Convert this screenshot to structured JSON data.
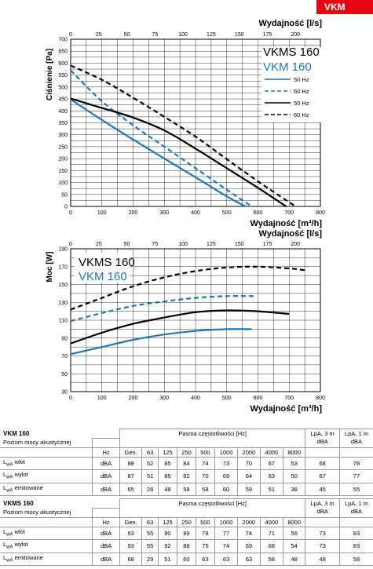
{
  "badge": "VKM",
  "charts": {
    "pressure": {
      "ylabel": "Ciśnienie [Pa]",
      "xlabel_top": "Wydajność [l/s]",
      "xlabel_bottom": "Wydajność [m³/h]",
      "model_vkms": "VKMS 160",
      "model_vkm": "VKM 160",
      "legend": [
        "50 Hz",
        "60 Hz",
        "50 Hz",
        "60 Hz"
      ]
    },
    "power": {
      "ylabel": "Moc [W]",
      "xlabel_top": "Wydajność [l/s]",
      "xlabel_bottom": "Wydajność [m³/h]",
      "model_vkms": "VKMS 160",
      "model_vkm": "VKM 160"
    }
  },
  "chart_data": [
    {
      "type": "line",
      "xlabel": "Wydajność [m³/h]",
      "x2label": "Wydajność [l/s]",
      "ylabel": "Ciśnienie [Pa]",
      "xlim": [
        0,
        800
      ],
      "x2lim": [
        0,
        222.2
      ],
      "ylim": [
        0,
        700
      ],
      "xticks": [
        0,
        100,
        200,
        300,
        400,
        500,
        600,
        700,
        800
      ],
      "x2ticks": [
        0,
        25,
        50,
        75,
        100,
        125,
        150,
        175,
        200
      ],
      "yticks": [
        0,
        50,
        100,
        150,
        200,
        250,
        300,
        350,
        400,
        450,
        500,
        550,
        600,
        650,
        700
      ],
      "grid": true,
      "legend_position": "top-right",
      "series": [
        {
          "name": "VKM 160 50 Hz",
          "color": "#1f77b4",
          "style": "solid",
          "x": [
            0,
            100,
            200,
            300,
            400,
            500,
            560
          ],
          "y": [
            448,
            362,
            280,
            200,
            122,
            42,
            0
          ]
        },
        {
          "name": "VKM 160 60 Hz",
          "color": "#1f77b4",
          "style": "dashed",
          "x": [
            0,
            100,
            200,
            300,
            400,
            500,
            580
          ],
          "y": [
            570,
            440,
            340,
            250,
            160,
            70,
            0
          ]
        },
        {
          "name": "VKMS 160 50 Hz",
          "color": "#000000",
          "style": "solid",
          "x": [
            0,
            100,
            200,
            300,
            400,
            500,
            600,
            690
          ],
          "y": [
            452,
            412,
            372,
            318,
            242,
            160,
            78,
            0
          ]
        },
        {
          "name": "VKMS 160 60 Hz",
          "color": "#000000",
          "style": "dashed",
          "x": [
            0,
            100,
            200,
            300,
            400,
            500,
            600,
            720
          ],
          "y": [
            590,
            530,
            455,
            375,
            292,
            198,
            105,
            0
          ]
        }
      ]
    },
    {
      "type": "line",
      "xlabel": "Wydajność [m³/h]",
      "x2label": "Wydajność [l/s]",
      "ylabel": "Moc [W]",
      "xlim": [
        0,
        800
      ],
      "x2lim": [
        0,
        222.2
      ],
      "ylim": [
        30,
        190
      ],
      "xticks": [
        0,
        100,
        200,
        300,
        400,
        500,
        600,
        700,
        800
      ],
      "x2ticks": [
        0,
        25,
        50,
        75,
        100,
        125,
        150,
        175,
        200
      ],
      "yticks": [
        30,
        50,
        70,
        90,
        110,
        130,
        150,
        170,
        190
      ],
      "grid": true,
      "series": [
        {
          "name": "VKM 160 50 Hz",
          "color": "#1f77b4",
          "style": "solid",
          "x": [
            0,
            100,
            200,
            300,
            400,
            500,
            580
          ],
          "y": [
            72,
            80,
            88,
            94,
            98,
            100,
            100
          ]
        },
        {
          "name": "VKM 160 60 Hz",
          "color": "#1f77b4",
          "style": "dashed",
          "x": [
            0,
            100,
            200,
            300,
            400,
            500,
            590
          ],
          "y": [
            109,
            118,
            126,
            131,
            135,
            137,
            137
          ]
        },
        {
          "name": "VKMS 160 50 Hz",
          "color": "#000000",
          "style": "solid",
          "x": [
            0,
            100,
            200,
            300,
            400,
            500,
            600,
            700
          ],
          "y": [
            84,
            96,
            106,
            113,
            119,
            121,
            120,
            117
          ]
        },
        {
          "name": "VKMS 160 60 Hz",
          "color": "#000000",
          "style": "dashed",
          "x": [
            0,
            100,
            200,
            300,
            400,
            500,
            600,
            700,
            750
          ],
          "y": [
            122,
            135,
            148,
            158,
            165,
            169,
            170,
            168,
            166
          ]
        }
      ]
    }
  ],
  "tables": [
    {
      "title": "VKM 160",
      "subtitle": "Poziom mocy akustycznej",
      "band_header": "Pasma częstotliwości [Hz]",
      "lpa3": "LpA, 3 m dBA",
      "lpa1": "LpA, 1 m dBA",
      "unit_header": "Hz",
      "gen": "Gen.",
      "freqs": [
        "63",
        "125",
        "250",
        "500",
        "1000",
        "2000",
        "4000",
        "8000"
      ],
      "rows": [
        {
          "label": "L",
          "sub": "wA",
          "label_rest": " wlot",
          "unit": "dBA",
          "gen": "88",
          "bands": [
            "52",
            "85",
            "84",
            "74",
            "73",
            "70",
            "67",
            "53"
          ],
          "lpa3": "68",
          "lpa1": "78"
        },
        {
          "label": "L",
          "sub": "wA",
          "label_rest": " wylot",
          "unit": "dBA",
          "gen": "87",
          "bands": [
            "51",
            "85",
            "82",
            "70",
            "69",
            "64",
            "63",
            "50"
          ],
          "lpa3": "67",
          "lpa1": "77"
        },
        {
          "label": "L",
          "sub": "wA",
          "label_rest": " emitowane",
          "unit": "dBA",
          "gen": "65",
          "bands": [
            "28",
            "48",
            "58",
            "58",
            "60",
            "59",
            "51",
            "38"
          ],
          "lpa3": "45",
          "lpa1": "55"
        }
      ]
    },
    {
      "title": "VKMS 160",
      "subtitle": "Poziom mocy akustycznej",
      "band_header": "Pasma częstotliwości [Hz]",
      "lpa3": "LpA, 3 m dBA",
      "lpa1": "LpA, 1 m dBA",
      "unit_header": "Hz",
      "gen": "Gen.",
      "freqs": [
        "63",
        "125",
        "250",
        "500",
        "1000",
        "2000",
        "4000",
        "8000"
      ],
      "rows": [
        {
          "label": "L",
          "sub": "wA",
          "label_rest": " wlot",
          "unit": "dBA",
          "gen": "93",
          "bands": [
            "55",
            "90",
            "89",
            "78",
            "77",
            "74",
            "71",
            "56"
          ],
          "lpa3": "73",
          "lpa1": "83"
        },
        {
          "label": "L",
          "sub": "wA",
          "label_rest": " wylot",
          "unit": "dBA",
          "gen": "93",
          "bands": [
            "55",
            "92",
            "88",
            "75",
            "74",
            "69",
            "68",
            "54"
          ],
          "lpa3": "73",
          "lpa1": "83"
        },
        {
          "label": "L",
          "sub": "wA",
          "label_rest": " emitowane",
          "unit": "dBA",
          "gen": "68",
          "bands": [
            "29",
            "51",
            "60",
            "63",
            "63",
            "63",
            "58",
            "48"
          ],
          "lpa3": "48",
          "lpa1": "58"
        }
      ]
    }
  ]
}
